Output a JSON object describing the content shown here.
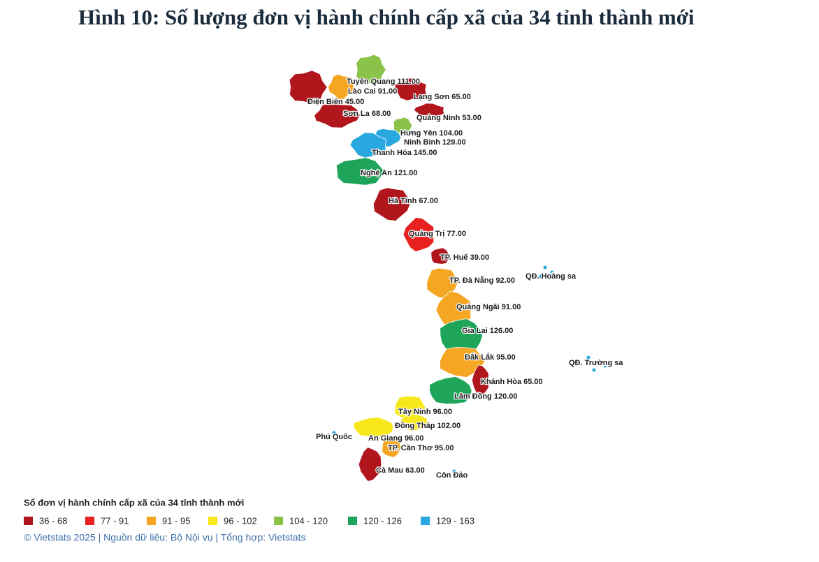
{
  "title": "Hình 10: Số lượng đơn vị hành chính cấp xã của 34 tỉnh thành mới",
  "regions": [
    {
      "name": "Tuyên Quang",
      "value": 111,
      "value_label": "111.00",
      "color": "#8bc34a"
    },
    {
      "name": "Lào Cai",
      "value": 91,
      "value_label": "91.00",
      "color": "#f5a623"
    },
    {
      "name": "Lạng Sơn",
      "value": 65,
      "value_label": "65.00",
      "color": "#b0161c"
    },
    {
      "name": "Điện Biên",
      "value": 45,
      "value_label": "45.00",
      "color": "#b0161c"
    },
    {
      "name": "Sơn La",
      "value": 68,
      "value_label": "68.00",
      "color": "#b0161c"
    },
    {
      "name": "Quảng Ninh",
      "value": 53,
      "value_label": "53.00",
      "color": "#b0161c"
    },
    {
      "name": "Hưng Yên",
      "value": 104,
      "value_label": "104.00",
      "color": "#8bc34a"
    },
    {
      "name": "Ninh Bình",
      "value": 129,
      "value_label": "129.00",
      "color": "#29a8e0"
    },
    {
      "name": "Thanh Hóa",
      "value": 145,
      "value_label": "145.00",
      "color": "#29a8e0"
    },
    {
      "name": "Nghệ An",
      "value": 121,
      "value_label": "121.00",
      "color": "#1fa55a"
    },
    {
      "name": "Hà Tĩnh",
      "value": 67,
      "value_label": "67.00",
      "color": "#b0161c"
    },
    {
      "name": "Quảng Trị",
      "value": 77,
      "value_label": "77.00",
      "color": "#e8201f"
    },
    {
      "name": "TP. Huế",
      "value": 39,
      "value_label": "39.00",
      "color": "#b0161c"
    },
    {
      "name": "TP. Đà Nẵng",
      "value": 92,
      "value_label": "92.00",
      "color": "#f5a623"
    },
    {
      "name": "Quảng Ngãi",
      "value": 91,
      "value_label": "91.00",
      "color": "#f5a623"
    },
    {
      "name": "Gia Lai",
      "value": 126,
      "value_label": "126.00",
      "color": "#1fa55a"
    },
    {
      "name": "Đắk Lắk",
      "value": 95,
      "value_label": "95.00",
      "color": "#f5a623"
    },
    {
      "name": "Khánh Hòa",
      "value": 65,
      "value_label": "65.00",
      "color": "#b0161c"
    },
    {
      "name": "Lâm Đồng",
      "value": 120,
      "value_label": "120.00",
      "color": "#1fa55a"
    },
    {
      "name": "Tây Ninh",
      "value": 96,
      "value_label": "96.00",
      "color": "#f7e81c"
    },
    {
      "name": "Đồng Tháp",
      "value": 102,
      "value_label": "102.00",
      "color": "#f7e81c"
    },
    {
      "name": "An Giang",
      "value": 96,
      "value_label": "96.00",
      "color": "#f7e81c"
    },
    {
      "name": "TP. Cần Thơ",
      "value": 95,
      "value_label": "95.00",
      "color": "#f5a623"
    },
    {
      "name": "Cà Mau",
      "value": 63,
      "value_label": "63.00",
      "color": "#b0161c"
    }
  ],
  "places": [
    "QĐ. Hoàng sa",
    "QĐ. Trường sa",
    "Phú Quốc",
    "Côn Đảo"
  ],
  "legend": {
    "title": "Số đơn vị hành chính cấp xã của 34 tỉnh thành mới",
    "items": [
      {
        "label": "36 - 68",
        "color": "#b0161c"
      },
      {
        "label": "77 - 91",
        "color": "#e8201f"
      },
      {
        "label": "91 - 95",
        "color": "#f5a623"
      },
      {
        "label": "96 - 102",
        "color": "#f7e81c"
      },
      {
        "label": "104 - 120",
        "color": "#8bc34a"
      },
      {
        "label": "120 - 126",
        "color": "#1fa55a"
      },
      {
        "label": "129 - 163",
        "color": "#29a8e0"
      }
    ]
  },
  "footer": "© Vietstats 2025 | Nguồn dữ liệu: Bộ Nội vụ | Tổng hợp: Vietstats"
}
